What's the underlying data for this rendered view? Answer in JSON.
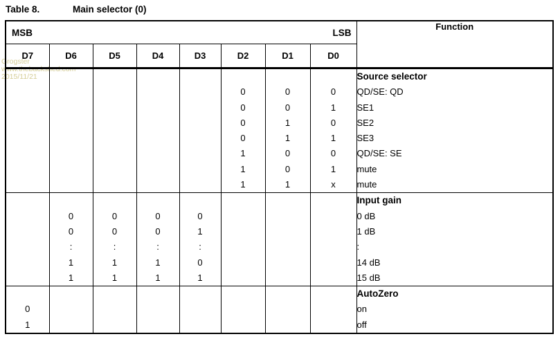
{
  "title": {
    "table_label": "Table 8.",
    "table_name": "Main selector (0)"
  },
  "watermark": {
    "lines": [
      "Grogster",
      "www.thebackshed.com",
      "2015/11/21"
    ],
    "color": "#d5cd96"
  },
  "header": {
    "msb": "MSB",
    "lsb": "LSB",
    "function": "Function",
    "bits": [
      "D7",
      "D6",
      "D5",
      "D4",
      "D3",
      "D2",
      "D1",
      "D0"
    ]
  },
  "sections": [
    {
      "function_title": "Source selector",
      "function_lines": [
        "QD/SE: QD",
        "SE1",
        "SE2",
        "SE3",
        "QD/SE: SE",
        "mute",
        "mute"
      ],
      "cells": {
        "D7": [],
        "D6": [],
        "D5": [],
        "D4": [],
        "D3": [],
        "D2": [
          "0",
          "0",
          "0",
          "0",
          "1",
          "1",
          "1"
        ],
        "D1": [
          "0",
          "0",
          "1",
          "1",
          "0",
          "0",
          "1"
        ],
        "D0": [
          "0",
          "1",
          "0",
          "1",
          "0",
          "1",
          "x"
        ]
      }
    },
    {
      "function_title": "Input gain",
      "function_lines": [
        "0 dB",
        "1 dB",
        ":",
        "14 dB",
        "15 dB"
      ],
      "cells": {
        "D7": [],
        "D6": [
          "0",
          "0",
          ":",
          "1",
          "1"
        ],
        "D5": [
          "0",
          "0",
          ":",
          "1",
          "1"
        ],
        "D4": [
          "0",
          "0",
          ":",
          "1",
          "1"
        ],
        "D3": [
          "0",
          "1",
          ":",
          "0",
          "1"
        ],
        "D2": [],
        "D1": [],
        "D0": []
      }
    },
    {
      "function_title": "AutoZero",
      "function_lines": [
        "on",
        "off"
      ],
      "cells": {
        "D7": [
          "0",
          "1"
        ],
        "D6": [],
        "D5": [],
        "D4": [],
        "D3": [],
        "D2": [],
        "D1": [],
        "D0": []
      }
    }
  ],
  "colors": {
    "border": "#000000",
    "text": "#000000",
    "background": "#ffffff"
  }
}
